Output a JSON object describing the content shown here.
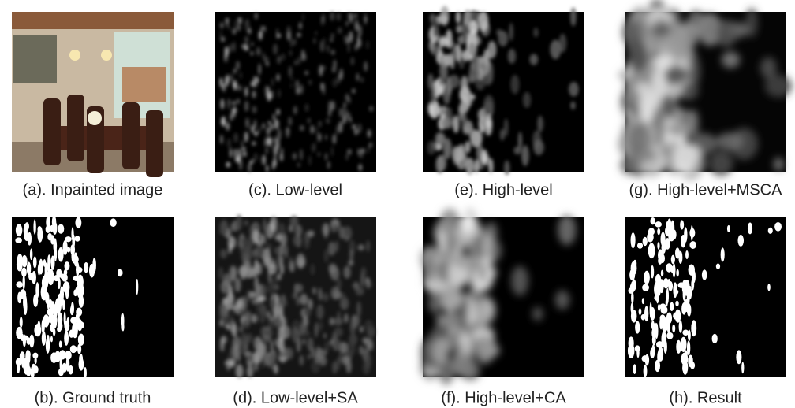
{
  "panels": [
    {
      "caption": "(a). Inpainted image"
    },
    {
      "caption": "(c). Low-level"
    },
    {
      "caption": "(e). High-level"
    },
    {
      "caption": "(g). High-level+MSCA"
    },
    {
      "caption": "(b). Ground truth"
    },
    {
      "caption": "(d). Low-level+SA"
    },
    {
      "caption": "(f). High-level+CA"
    },
    {
      "caption": "(h). Result"
    }
  ]
}
